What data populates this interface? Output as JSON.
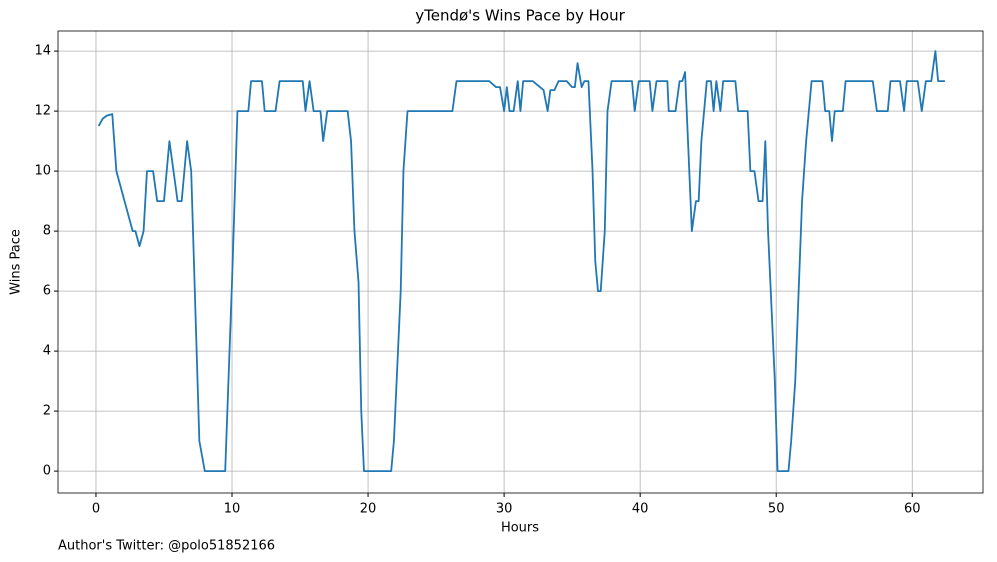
{
  "chart_data": {
    "type": "line",
    "title": "yTendø's Wins Pace by Hour",
    "x_label": "Hours",
    "y_label": "Wins Pace",
    "annotation": "Author's Twitter: @polo51852166",
    "color": "#1f77b4",
    "grid": true,
    "x": [
      0.2,
      0.5,
      0.8,
      1.2,
      1.5,
      2.7,
      2.9,
      3.2,
      3.5,
      3.75,
      4.2,
      4.5,
      5.0,
      5.4,
      6.0,
      6.3,
      6.7,
      7.0,
      7.6,
      8.0,
      9.5,
      10.0,
      10.4,
      11.2,
      11.4,
      12.2,
      12.4,
      13.2,
      13.5,
      15.2,
      15.4,
      15.7,
      16.0,
      16.5,
      16.7,
      17.0,
      18.5,
      18.75,
      19.0,
      19.3,
      19.5,
      19.7,
      21.7,
      21.9,
      22.4,
      22.6,
      22.9,
      26.2,
      26.5,
      28.9,
      29.4,
      29.7,
      30.0,
      30.2,
      30.4,
      30.7,
      31.0,
      31.2,
      31.4,
      32.1,
      32.9,
      33.2,
      33.4,
      33.7,
      34.0,
      34.6,
      35.0,
      35.2,
      35.4,
      35.7,
      35.9,
      36.2,
      36.5,
      36.7,
      36.9,
      37.1,
      37.4,
      37.6,
      37.9,
      39.4,
      39.6,
      39.9,
      40.7,
      40.9,
      41.2,
      42.0,
      42.1,
      42.6,
      42.9,
      43.1,
      43.3,
      43.8,
      44.1,
      44.3,
      44.5,
      44.9,
      45.2,
      45.4,
      45.6,
      45.9,
      46.1,
      47.0,
      47.2,
      47.9,
      48.1,
      48.4,
      48.7,
      49.0,
      49.2,
      49.4,
      49.6,
      49.9,
      50.1,
      50.9,
      51.1,
      51.4,
      51.9,
      52.2,
      52.6,
      53.4,
      53.6,
      53.9,
      54.1,
      54.3,
      54.9,
      55.1,
      57.1,
      57.4,
      58.2,
      58.4,
      59.1,
      59.4,
      59.6,
      60.4,
      60.7,
      61.0,
      61.4,
      61.7,
      61.9,
      62.4
    ],
    "values": [
      11.5,
      11.75,
      11.85,
      11.9,
      10,
      8,
      8,
      7.5,
      8,
      10,
      10,
      9,
      9,
      11,
      9,
      9,
      11,
      10,
      1,
      0,
      0,
      6.3,
      12,
      12,
      13,
      13,
      12,
      12,
      13,
      13,
      12,
      13,
      12,
      12,
      11,
      12,
      12,
      11,
      8,
      6.3,
      2,
      0,
      0,
      1,
      6,
      10,
      12,
      12,
      13,
      13,
      12.8,
      12.8,
      12,
      12.8,
      12,
      12,
      13,
      12,
      13,
      13,
      12.7,
      12,
      12.7,
      12.7,
      13,
      13,
      12.8,
      12.8,
      13.6,
      12.8,
      13,
      13,
      10,
      7,
      6,
      6,
      8,
      12,
      13,
      13,
      12,
      13,
      13,
      12,
      13,
      13,
      12,
      12,
      13,
      13,
      13.3,
      8,
      9,
      9,
      11,
      13,
      13,
      12,
      13,
      12,
      13,
      13,
      12,
      12,
      10,
      10,
      9,
      9,
      11,
      8,
      6,
      3,
      0,
      0,
      1,
      3,
      9,
      11,
      13,
      13,
      12,
      12,
      11,
      12,
      12,
      13,
      13,
      12,
      12,
      13,
      13,
      12,
      13,
      13,
      12,
      13,
      13,
      14,
      13,
      13
    ],
    "xlim": [
      -2.79,
      65.2
    ],
    "ylim": [
      -0.73,
      14.67
    ],
    "xticks": [
      0,
      10,
      20,
      30,
      40,
      50,
      60
    ],
    "yticks": [
      0,
      2,
      4,
      6,
      8,
      10,
      12,
      14
    ]
  }
}
